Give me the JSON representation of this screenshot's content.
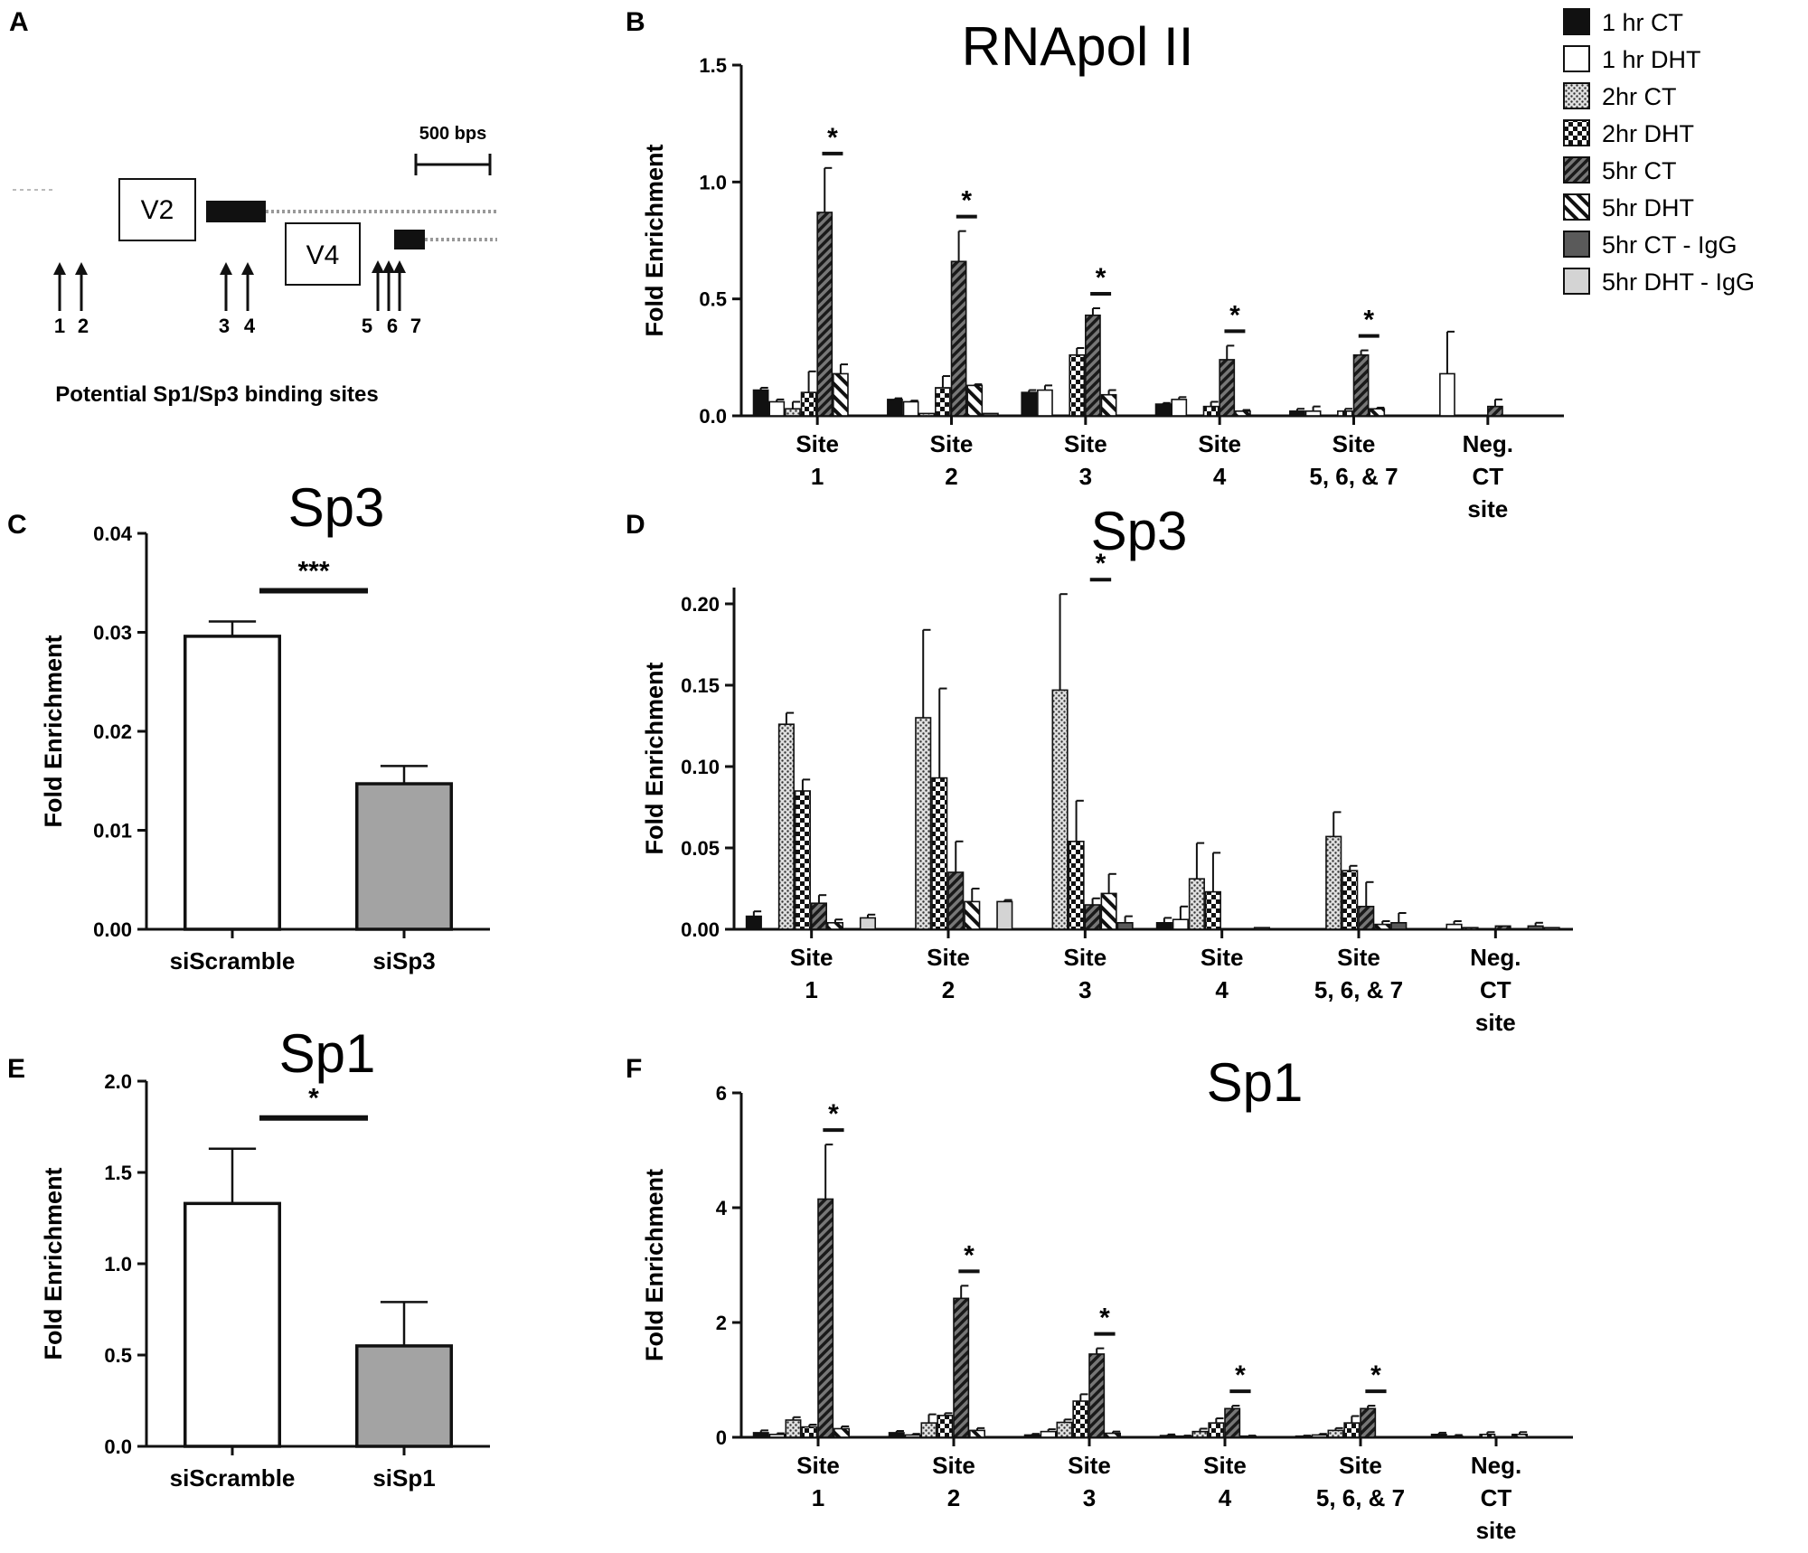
{
  "series_styles": [
    {
      "name": "1 hr CT",
      "fill": "#111111",
      "pattern": "solid"
    },
    {
      "name": "1 hr DHT",
      "fill": "#ffffff",
      "pattern": "solid"
    },
    {
      "name": "2hr CT",
      "fill": "#bdbdbd",
      "pattern": "dots"
    },
    {
      "name": "2hr DHT",
      "fill": "#ffffff",
      "pattern": "checker"
    },
    {
      "name": "5hr CT",
      "fill": "#555555",
      "pattern": "hatch"
    },
    {
      "name": "5hr DHT",
      "fill": "#ffffff",
      "pattern": "stripe"
    },
    {
      "name": "5hr CT - IgG",
      "fill": "#5a5a5a",
      "pattern": "solid"
    },
    {
      "name": "5hr DHT - IgG",
      "fill": "#d4d4d4",
      "pattern": "solid"
    }
  ],
  "diagram": {
    "letter": "A",
    "scale_label": "500 bps",
    "box_v2": "V2",
    "box_v4": "V4",
    "arrow_labels": [
      "1",
      "2",
      "3",
      "4",
      "5",
      "6",
      "7"
    ],
    "caption": "Potential Sp1/Sp3 binding sites"
  },
  "chart_data": [
    {
      "panel": "B",
      "type": "bar",
      "title": "RNApol II",
      "ylabel": "Fold Enrichment",
      "ylim": [
        0,
        1.5
      ],
      "yticks": [
        "0.0",
        "0.5",
        "1.0",
        "1.5"
      ],
      "categories": [
        "Site\n1",
        "Site\n2",
        "Site\n3",
        "Site\n4",
        "Site\n5, 6, & 7",
        "Neg.\nCT\nsite"
      ],
      "legend": true,
      "series": [
        {
          "name": "1 hr CT",
          "values": [
            0.11,
            0.07,
            0.1,
            0.05,
            0.02,
            0.0
          ],
          "err": [
            0.01,
            0.005,
            0.01,
            0.005,
            0.01,
            0
          ]
        },
        {
          "name": "1 hr DHT",
          "values": [
            0.06,
            0.06,
            0.11,
            0.07,
            0.02,
            0.18
          ],
          "err": [
            0.01,
            0.005,
            0.02,
            0.01,
            0.02,
            0.18
          ]
        },
        {
          "name": "2hr CT",
          "values": [
            0.03,
            0.01,
            0.0,
            0.0,
            0.0,
            0.0
          ],
          "err": [
            0.03,
            0.0,
            0,
            0,
            0,
            0
          ]
        },
        {
          "name": "2hr DHT",
          "values": [
            0.1,
            0.12,
            0.26,
            0.04,
            0.02,
            0.0
          ],
          "err": [
            0.09,
            0.05,
            0.03,
            0.02,
            0.01,
            0
          ]
        },
        {
          "name": "5hr CT",
          "values": [
            0.87,
            0.66,
            0.43,
            0.24,
            0.26,
            0.04
          ],
          "err": [
            0.19,
            0.13,
            0.03,
            0.06,
            0.02,
            0.03
          ]
        },
        {
          "name": "5hr DHT",
          "values": [
            0.18,
            0.13,
            0.09,
            0.02,
            0.03,
            0.0
          ],
          "err": [
            0.04,
            0.005,
            0.02,
            0.005,
            0.005,
            0
          ]
        },
        {
          "name": "5hr CT - IgG",
          "values": [
            0.0,
            0.01,
            0.0,
            0.0,
            0.0,
            0.0
          ],
          "err": [
            0,
            0,
            0,
            0,
            0,
            0
          ]
        },
        {
          "name": "5hr DHT - IgG",
          "values": [
            0.0,
            0.0,
            0.0,
            0.0,
            0.0,
            0.0
          ],
          "err": [
            0,
            0,
            0,
            0,
            0,
            0
          ]
        }
      ],
      "significance": [
        {
          "category": 0,
          "label": "*"
        },
        {
          "category": 1,
          "label": "*"
        },
        {
          "category": 2,
          "label": "*"
        },
        {
          "category": 3,
          "label": "*"
        },
        {
          "category": 4,
          "label": "*"
        }
      ]
    },
    {
      "panel": "C",
      "type": "bar",
      "title": "Sp3",
      "ylabel": "Fold Enrichment",
      "ylim": [
        0,
        0.04
      ],
      "yticks": [
        "0.00",
        "0.01",
        "0.02",
        "0.03",
        "0.04"
      ],
      "categories": [
        "siScramble",
        "siSp3"
      ],
      "values": [
        0.0296,
        0.0147
      ],
      "err": [
        0.0015,
        0.0018
      ],
      "fills": [
        "#ffffff",
        "#a3a3a3"
      ],
      "significance": "***"
    },
    {
      "panel": "D",
      "type": "bar",
      "title": "Sp3",
      "ylabel": "Fold Enrichment",
      "ylim": [
        0,
        0.21
      ],
      "yticks": [
        "0.00",
        "0.05",
        "0.10",
        "0.15",
        "0.20"
      ],
      "categories": [
        "Site\n1",
        "Site\n2",
        "Site\n3",
        "Site\n4",
        "Site\n5, 6, & 7",
        "Neg.\nCT\nsite"
      ],
      "legend": false,
      "series": [
        {
          "name": "1 hr CT",
          "values": [
            0.008,
            0.0,
            0.0,
            0.004,
            0.0,
            0.0
          ],
          "err": [
            0.003,
            0,
            0,
            0.003,
            0,
            0
          ]
        },
        {
          "name": "1 hr DHT",
          "values": [
            0.0,
            0.0,
            0.0,
            0.006,
            0.0,
            0.003
          ],
          "err": [
            0,
            0,
            0,
            0.008,
            0,
            0.002
          ]
        },
        {
          "name": "2hr CT",
          "values": [
            0.126,
            0.13,
            0.147,
            0.031,
            0.057,
            0.001
          ],
          "err": [
            0.007,
            0.054,
            0.059,
            0.022,
            0.015,
            0.0
          ]
        },
        {
          "name": "2hr DHT",
          "values": [
            0.085,
            0.093,
            0.054,
            0.023,
            0.036,
            0.0
          ],
          "err": [
            0.007,
            0.055,
            0.025,
            0.024,
            0.003,
            0
          ]
        },
        {
          "name": "5hr CT",
          "values": [
            0.016,
            0.035,
            0.015,
            0.0,
            0.014,
            0.002
          ],
          "err": [
            0.005,
            0.019,
            0.004,
            0,
            0.015,
            0.0
          ]
        },
        {
          "name": "5hr DHT",
          "values": [
            0.004,
            0.017,
            0.022,
            0.0,
            0.003,
            0.0
          ],
          "err": [
            0.002,
            0.008,
            0.012,
            0,
            0.002,
            0
          ]
        },
        {
          "name": "5hr CT - IgG",
          "values": [
            0.0,
            0.0,
            0.004,
            0.001,
            0.004,
            0.002
          ],
          "err": [
            0,
            0,
            0.004,
            0.0,
            0.006,
            0.002
          ]
        },
        {
          "name": "5hr DHT - IgG",
          "values": [
            0.007,
            0.017,
            0.0,
            0.0,
            0.0,
            0.001
          ],
          "err": [
            0.002,
            0.001,
            0,
            0,
            0,
            0.0
          ]
        }
      ],
      "series_extra_note": "",
      "significance": [
        {
          "category": 2,
          "label": "*"
        }
      ]
    },
    {
      "panel": "E",
      "type": "bar",
      "title": "Sp1",
      "ylabel": "Fold Enrichment",
      "ylim": [
        0,
        2.0
      ],
      "yticks": [
        "0.0",
        "0.5",
        "1.0",
        "1.5",
        "2.0"
      ],
      "categories": [
        "siScramble",
        "siSp1"
      ],
      "values": [
        1.33,
        0.55
      ],
      "err": [
        0.3,
        0.24
      ],
      "fills": [
        "#ffffff",
        "#a3a3a3"
      ],
      "significance": "*"
    },
    {
      "panel": "F",
      "type": "bar",
      "title": "Sp1",
      "ylabel": "Fold Enrichment",
      "ylim": [
        0,
        6
      ],
      "yticks": [
        "0",
        "2",
        "4",
        "6"
      ],
      "categories": [
        "Site\n1",
        "Site\n2",
        "Site\n3",
        "Site\n4",
        "Site\n5, 6, & 7",
        "Neg.\nCT\nsite"
      ],
      "legend": false,
      "series": [
        {
          "name": "1 hr CT",
          "values": [
            0.08,
            0.08,
            0.04,
            0.03,
            0.02,
            0.05
          ],
          "err": [
            0.04,
            0.03,
            0.02,
            0.02,
            0.01,
            0.03
          ]
        },
        {
          "name": "1 hr DHT",
          "values": [
            0.05,
            0.04,
            0.1,
            0.02,
            0.04,
            0.02
          ],
          "err": [
            0.02,
            0.02,
            0.04,
            0.01,
            0.02,
            0.02
          ]
        },
        {
          "name": "2hr CT",
          "values": [
            0.3,
            0.25,
            0.26,
            0.1,
            0.12,
            0.0
          ],
          "err": [
            0.05,
            0.15,
            0.05,
            0.05,
            0.04,
            0
          ]
        },
        {
          "name": "2hr DHT",
          "values": [
            0.18,
            0.38,
            0.63,
            0.25,
            0.25,
            0.05
          ],
          "err": [
            0.04,
            0.04,
            0.12,
            0.08,
            0.12,
            0.04
          ]
        },
        {
          "name": "5hr CT",
          "values": [
            4.15,
            2.42,
            1.45,
            0.5,
            0.5,
            0.0
          ],
          "err": [
            0.95,
            0.22,
            0.1,
            0.05,
            0.05,
            0
          ]
        },
        {
          "name": "5hr DHT",
          "values": [
            0.15,
            0.12,
            0.07,
            0.02,
            0.0,
            0.05
          ],
          "err": [
            0.04,
            0.04,
            0.03,
            0.01,
            0,
            0.04
          ]
        },
        {
          "name": "5hr CT - IgG",
          "values": [
            0.0,
            0.0,
            0.0,
            0.0,
            0.0,
            0.0
          ],
          "err": [
            0,
            0,
            0,
            0,
            0,
            0
          ]
        },
        {
          "name": "5hr DHT - IgG",
          "values": [
            0.0,
            0.0,
            0.0,
            0.0,
            0.0,
            0.0
          ],
          "err": [
            0,
            0,
            0,
            0,
            0,
            0
          ]
        }
      ],
      "significance": [
        {
          "category": 0,
          "label": "*"
        },
        {
          "category": 1,
          "label": "*"
        },
        {
          "category": 2,
          "label": "*"
        },
        {
          "category": 3,
          "label": "*"
        },
        {
          "category": 4,
          "label": "*"
        }
      ]
    }
  ]
}
